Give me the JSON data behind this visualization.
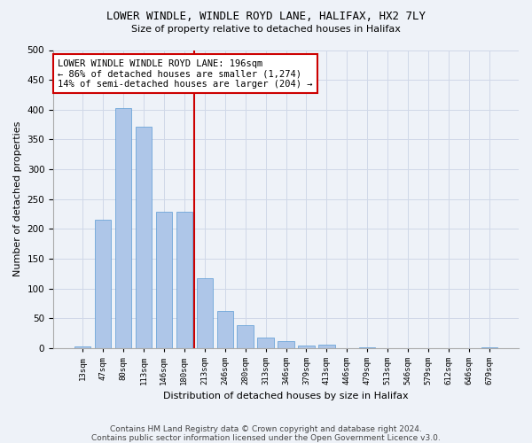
{
  "title": "LOWER WINDLE, WINDLE ROYD LANE, HALIFAX, HX2 7LY",
  "subtitle": "Size of property relative to detached houses in Halifax",
  "xlabel": "Distribution of detached houses by size in Halifax",
  "ylabel": "Number of detached properties",
  "categories": [
    "13sqm",
    "47sqm",
    "80sqm",
    "113sqm",
    "146sqm",
    "180sqm",
    "213sqm",
    "246sqm",
    "280sqm",
    "313sqm",
    "346sqm",
    "379sqm",
    "413sqm",
    "446sqm",
    "479sqm",
    "513sqm",
    "546sqm",
    "579sqm",
    "612sqm",
    "646sqm",
    "679sqm"
  ],
  "bar_values": [
    3,
    216,
    403,
    372,
    228,
    228,
    118,
    63,
    38,
    18,
    12,
    4,
    6,
    0,
    1,
    0,
    0,
    0,
    0,
    0,
    2
  ],
  "bar_color": "#aec6e8",
  "bar_edge_color": "#5b9bd5",
  "annotation_box_text": "LOWER WINDLE WINDLE ROYD LANE: 196sqm\n← 86% of detached houses are smaller (1,274)\n14% of semi-detached houses are larger (204) →",
  "annotation_box_color": "#ffffff",
  "annotation_box_edge_color": "#cc0000",
  "vline_color": "#cc0000",
  "grid_color": "#d0d8e8",
  "background_color": "#eef2f8",
  "footer_line1": "Contains HM Land Registry data © Crown copyright and database right 2024.",
  "footer_line2": "Contains public sector information licensed under the Open Government Licence v3.0.",
  "ylim": [
    0,
    500
  ],
  "yticks": [
    0,
    50,
    100,
    150,
    200,
    250,
    300,
    350,
    400,
    450,
    500
  ],
  "title_fontsize": 9,
  "subtitle_fontsize": 8,
  "ylabel_fontsize": 8,
  "xlabel_fontsize": 8
}
